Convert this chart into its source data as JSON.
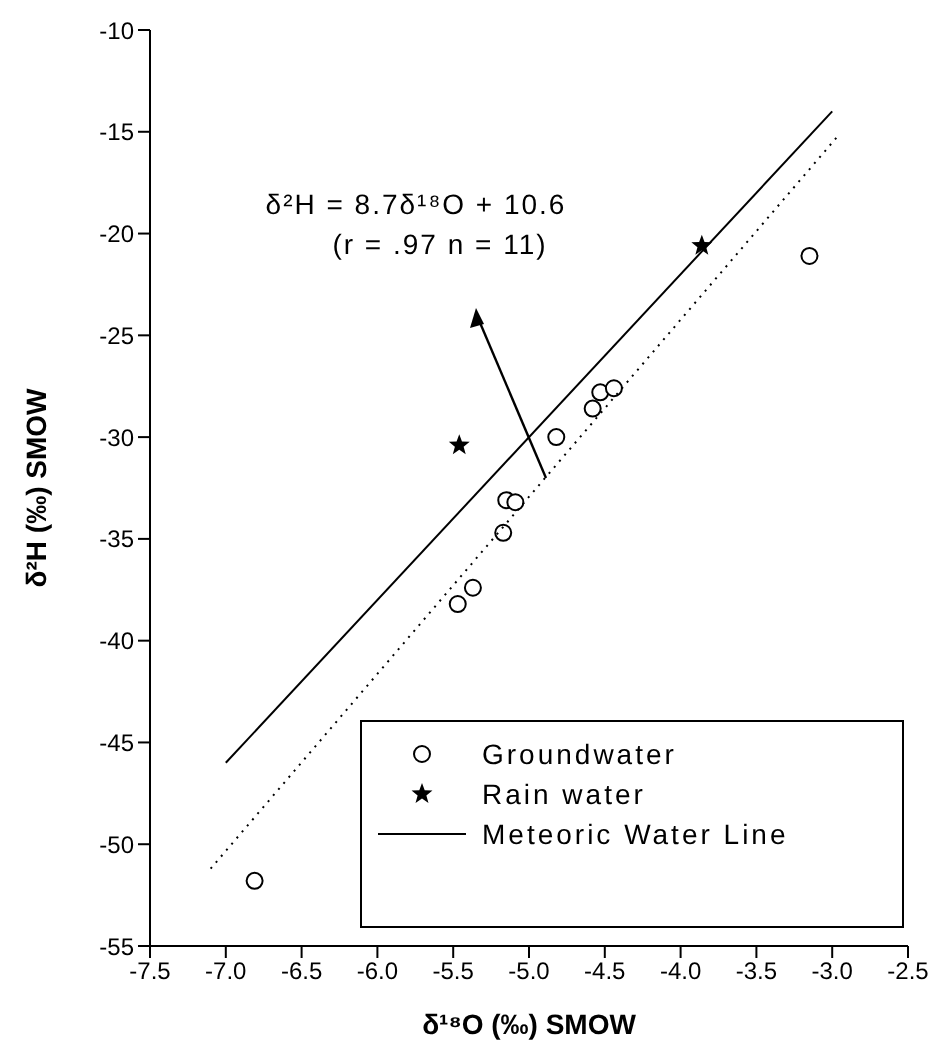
{
  "chart_data": {
    "type": "scatter",
    "xlabel": "δ¹⁸O (‰) SMOW",
    "ylabel": "δ²H (‰) SMOW",
    "xlim": [
      -7.5,
      -2.5
    ],
    "xticks": [
      -7.5,
      {
        "value": -7,
        "label": "-7.0"
      },
      -6.5,
      {
        "value": -6,
        "label": "-6.0"
      },
      -5.5,
      {
        "value": -5,
        "label": "-5.0"
      },
      -4.5,
      {
        "value": -4,
        "label": "-4.0"
      },
      -3.5,
      {
        "value": -3,
        "label": "-3.0"
      },
      -2.5
    ],
    "ylim": [
      -55,
      -10
    ],
    "yticks": [
      -55,
      -50,
      -45,
      -40,
      -35,
      -30,
      -25,
      -20,
      -15,
      -10
    ],
    "grid": false,
    "legend": "bottom right",
    "series": [
      {
        "name": "Groundwater",
        "marker": "circle",
        "color": "#000000",
        "x": [
          -6.81,
          -5.47,
          -5.37,
          -5.17,
          -5.15,
          -5.09,
          -4.82,
          -4.58,
          -4.53,
          -4.44,
          -3.15
        ],
        "values": [
          -51.8,
          -38.2,
          -37.4,
          -34.7,
          -33.1,
          -33.2,
          -30,
          -28.6,
          -27.8,
          -27.6,
          -21.1
        ]
      },
      {
        "name": "Rain water",
        "marker": "star",
        "color": "#000000",
        "x": [
          -5.46,
          -3.86
        ],
        "values": [
          -30.4,
          -20.6
        ]
      },
      {
        "name": "Meteoric Water Line",
        "type": "line",
        "marker": "none",
        "line_style": "solid",
        "color": "#000000",
        "x": [
          -7,
          -3
        ],
        "values": [
          -46,
          -14
        ]
      },
      {
        "type": "line",
        "marker": "none",
        "line_style": "dotted",
        "color": "#000000",
        "x": [
          -7.1,
          -2.95
        ],
        "values": [
          -51.2,
          -15.1
        ]
      }
    ],
    "annotations": [
      "δ²H = 8.7δ¹⁸O + 10.6",
      "(r = .97  n = 11)"
    ]
  }
}
